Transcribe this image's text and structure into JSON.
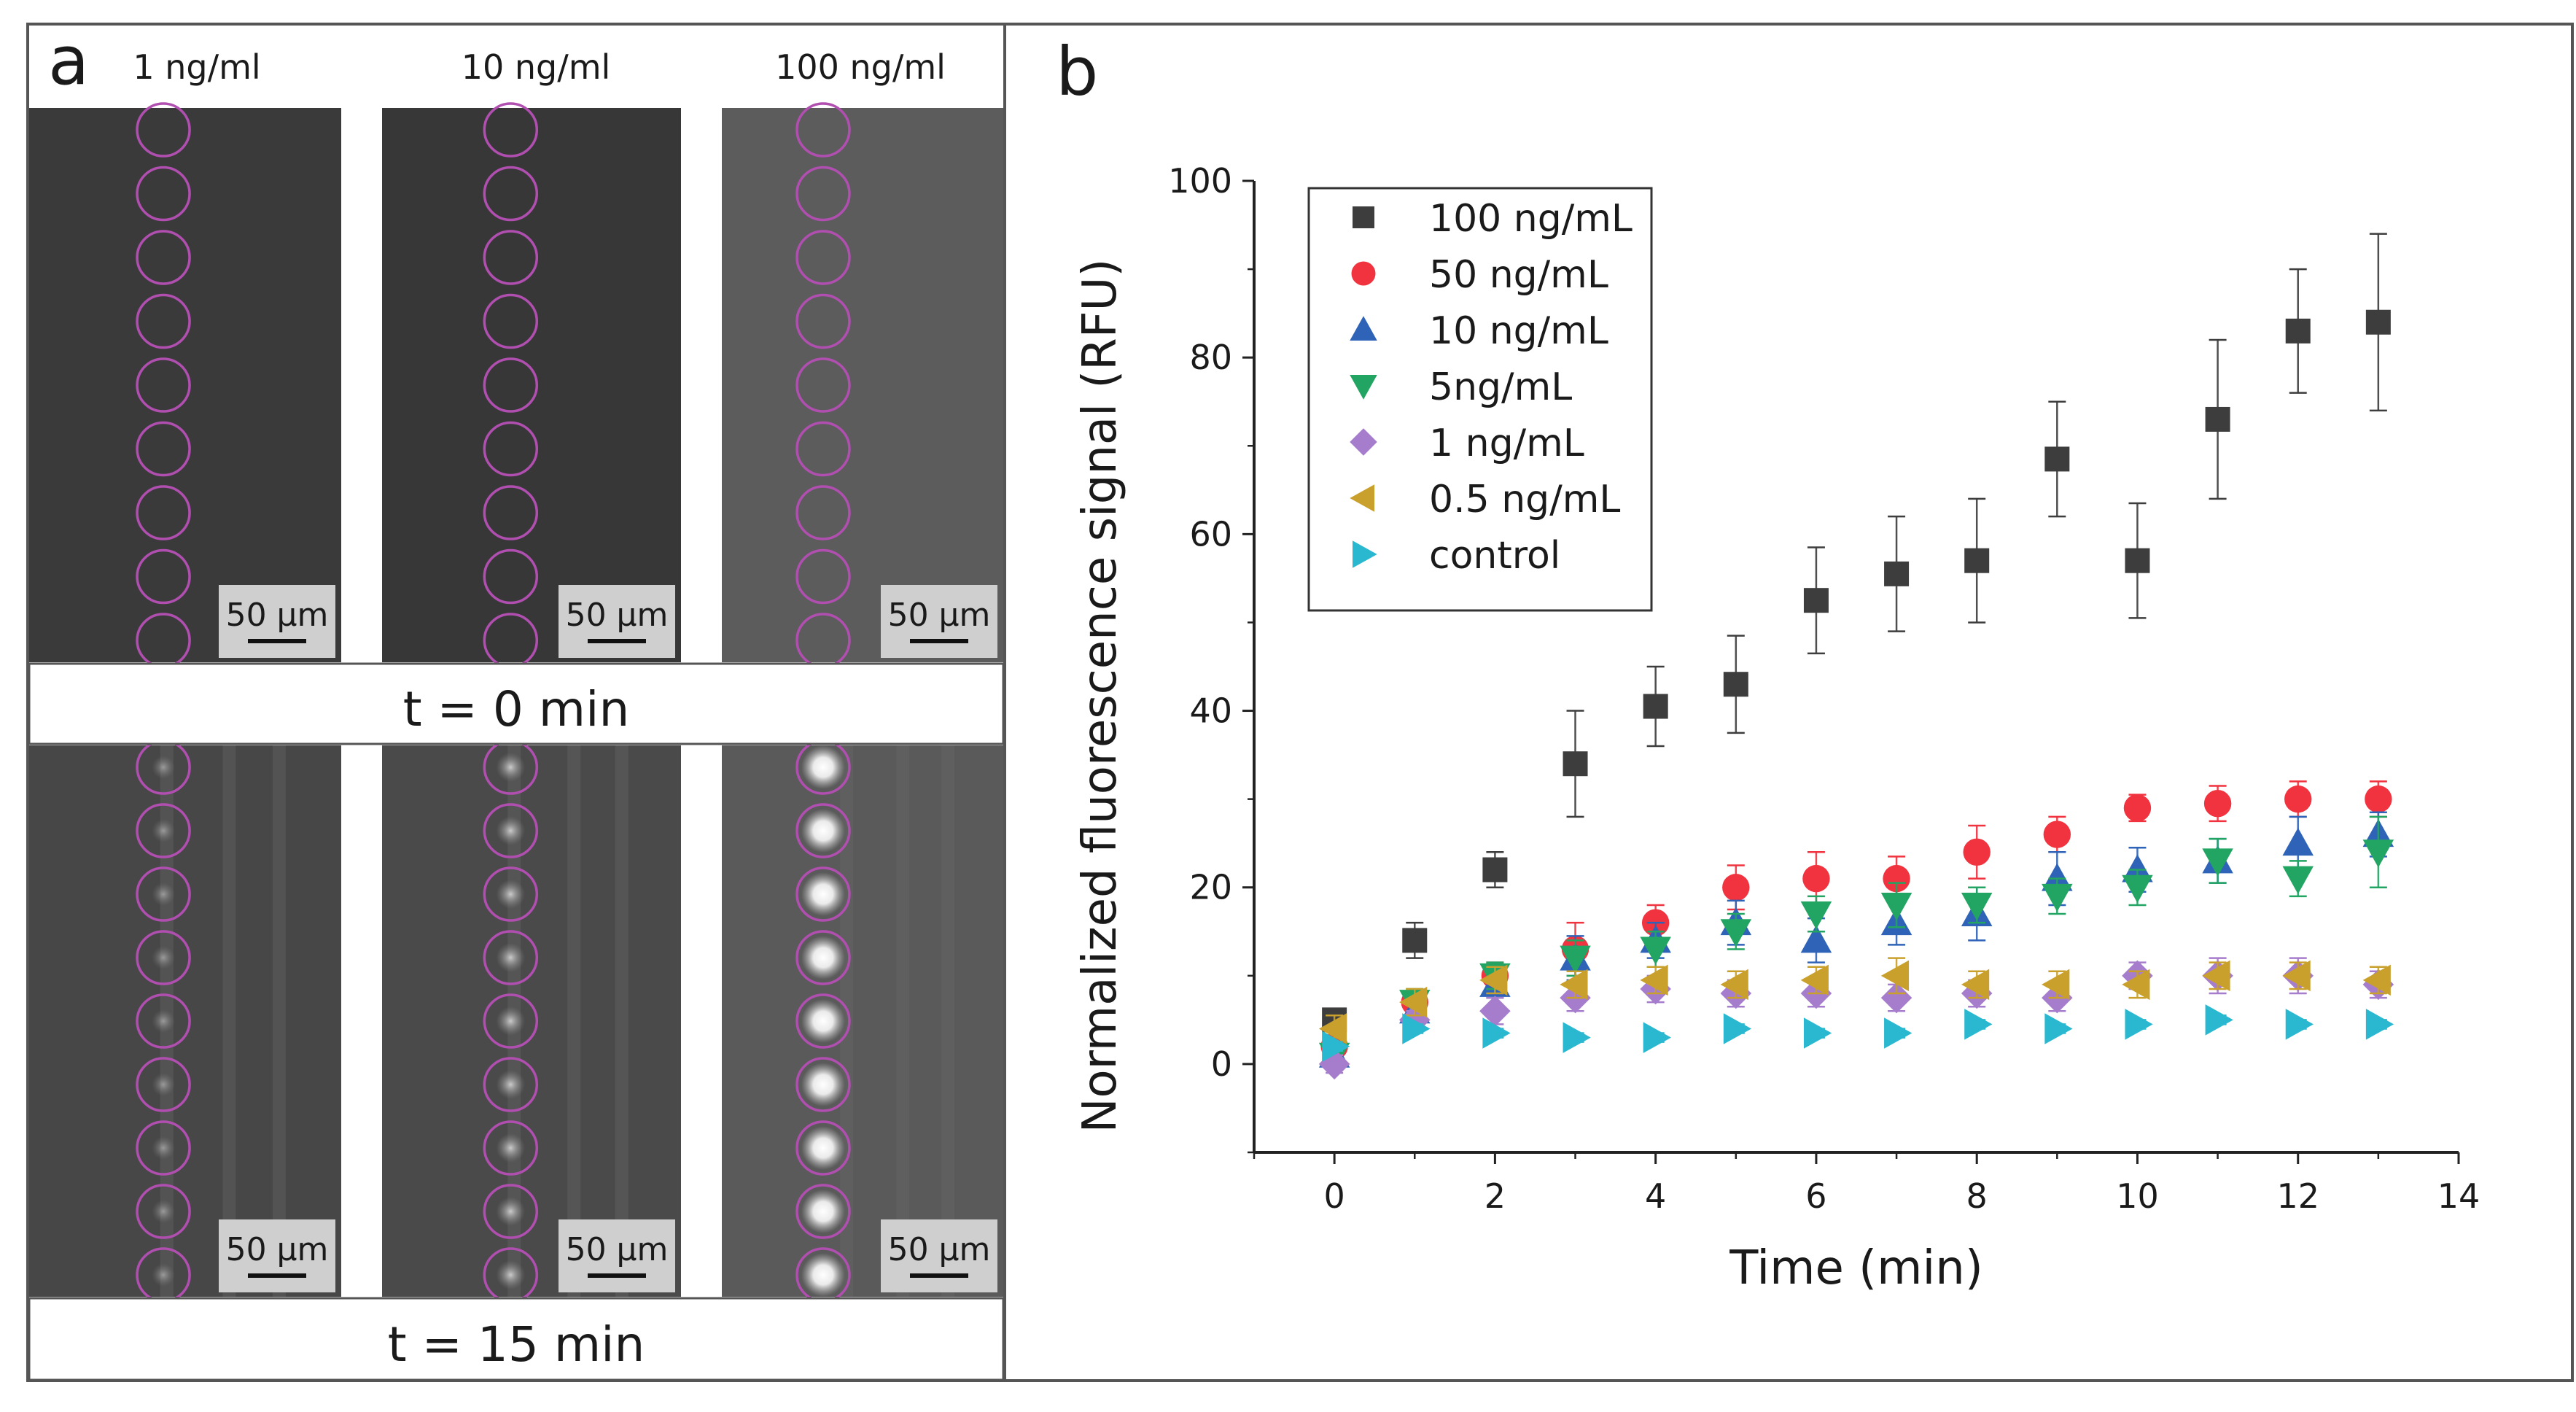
{
  "panel_a": {
    "letter": "a",
    "concentrations": [
      "1 ng/ml",
      "10 ng/ml",
      "100 ng/ml"
    ],
    "scale_bar": "50 µm",
    "time_labels": [
      "t = 0 min",
      "t = 15 min"
    ]
  },
  "panel_b": {
    "letter": "b"
  },
  "colors": {
    "100 ng/mL": "#3d3d3d",
    "50 ng/mL": "#f0333f",
    "10 ng/mL": "#2e63b8",
    "5ng/mL": "#22a562",
    "1 ng/mL": "#a67ccc",
    "0.5 ng/mL": "#c9a02c",
    "control": "#2ab8d0",
    "droplet_ring": "#b04fb0"
  },
  "chart_data": {
    "type": "scatter",
    "xlabel": "Time (min)",
    "ylabel": "Normalized fluorescence signal (RFU)",
    "xlim": [
      -1,
      14
    ],
    "ylim": [
      -10,
      100
    ],
    "xticks": [
      0,
      2,
      4,
      6,
      8,
      10,
      12,
      14
    ],
    "yticks": [
      0,
      20,
      40,
      60,
      80,
      100
    ],
    "x": [
      0,
      1,
      2,
      3,
      4,
      5,
      6,
      7,
      8,
      9,
      10,
      11,
      12,
      13
    ],
    "legend_position": "top-left",
    "error_bars": true,
    "series": [
      {
        "name": "100 ng/mL",
        "marker": "square",
        "values": [
          5,
          14,
          22,
          34,
          40.5,
          43,
          52.5,
          55.5,
          57,
          68.5,
          57,
          73,
          83,
          84
        ],
        "errors": [
          1,
          2,
          2,
          6,
          4.5,
          5.5,
          6,
          6.5,
          7,
          6.5,
          6.5,
          9,
          7,
          10
        ]
      },
      {
        "name": "50 ng/mL",
        "marker": "circle",
        "values": [
          2,
          7,
          10,
          13,
          16,
          20,
          21,
          21,
          24,
          26,
          29,
          29.5,
          30,
          30
        ],
        "errors": [
          1,
          1,
          1.5,
          3,
          2,
          2.5,
          3,
          2.5,
          3,
          2,
          1.5,
          2,
          2,
          2
        ]
      },
      {
        "name": "10 ng/mL",
        "marker": "triangle-up",
        "values": [
          1,
          6,
          9,
          12,
          14,
          16,
          14,
          16,
          17,
          21,
          22,
          23,
          25,
          26
        ],
        "errors": [
          1,
          1.5,
          1.5,
          2.5,
          2,
          2.5,
          2.5,
          2.5,
          3,
          3,
          2.5,
          2.5,
          3,
          2.5
        ]
      },
      {
        "name": "5ng/mL",
        "marker": "triangle-down",
        "values": [
          1,
          7,
          10,
          12,
          13,
          15,
          17,
          18,
          18,
          19,
          20,
          23,
          21,
          24
        ],
        "errors": [
          1,
          1.5,
          1.5,
          2,
          2,
          2,
          2,
          2.5,
          2,
          2,
          2,
          2.5,
          2,
          4
        ]
      },
      {
        "name": "1 ng/mL",
        "marker": "diamond",
        "values": [
          0,
          5,
          6,
          7.5,
          8.5,
          8,
          8,
          7.5,
          8,
          7.5,
          10,
          10,
          10,
          9
        ],
        "errors": [
          1,
          1,
          1.5,
          1.5,
          1.5,
          1.5,
          1.5,
          1.5,
          1.5,
          1.5,
          1.5,
          2,
          2,
          1.5
        ]
      },
      {
        "name": "0.5 ng/mL",
        "marker": "triangle-left",
        "values": [
          4,
          7,
          9.5,
          9,
          9.5,
          9,
          9.5,
          10,
          9,
          9,
          9,
          10,
          10,
          9.5
        ],
        "errors": [
          1.5,
          1.5,
          1.5,
          1.5,
          1.5,
          1.5,
          1.5,
          2,
          1.5,
          1.5,
          1.5,
          1.5,
          1.5,
          1.5
        ]
      },
      {
        "name": "control",
        "marker": "triangle-right",
        "values": [
          2,
          4,
          3.5,
          3,
          3,
          4,
          3.5,
          3.5,
          4.5,
          4,
          4.5,
          5,
          4.5,
          4.5
        ],
        "errors": [
          0.5,
          0.5,
          0.5,
          0.5,
          0.5,
          0.5,
          0.5,
          0.5,
          0.5,
          0.5,
          0.5,
          0.5,
          0.5,
          0.5
        ]
      }
    ]
  }
}
